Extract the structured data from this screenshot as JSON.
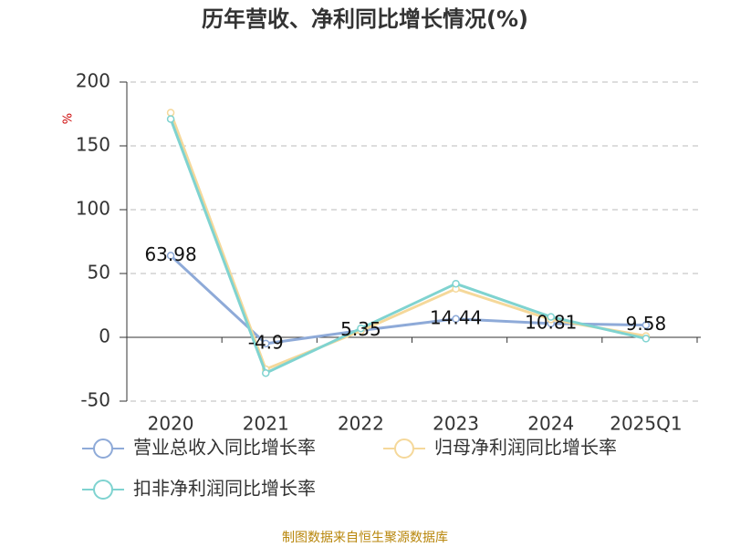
{
  "chart_data": {
    "type": "line",
    "title": "历年营收、净利同比增长情况(%)",
    "y_label": "%",
    "categories": [
      "2020",
      "2021",
      "2022",
      "2023",
      "2024",
      "2025Q1"
    ],
    "series": [
      {
        "name": "营业总收入同比增长率",
        "color": "#8eaad8",
        "values": [
          63.98,
          -4.9,
          5.35,
          14.44,
          10.81,
          9.58
        ]
      },
      {
        "name": "归母净利润同比增长率",
        "color": "#f5d89a",
        "values": [
          176,
          -25,
          5,
          38,
          14,
          1
        ]
      },
      {
        "name": "扣非净利润同比增长率",
        "color": "#7fd3d0",
        "values": [
          171,
          -28,
          7,
          42,
          16,
          -1
        ]
      }
    ],
    "labeled_series": 0,
    "ylim": [
      -50,
      200
    ],
    "yticks": [
      -50,
      0,
      50,
      100,
      150,
      200
    ],
    "grid": true,
    "source": "制图数据来自恒生聚源数据库"
  }
}
